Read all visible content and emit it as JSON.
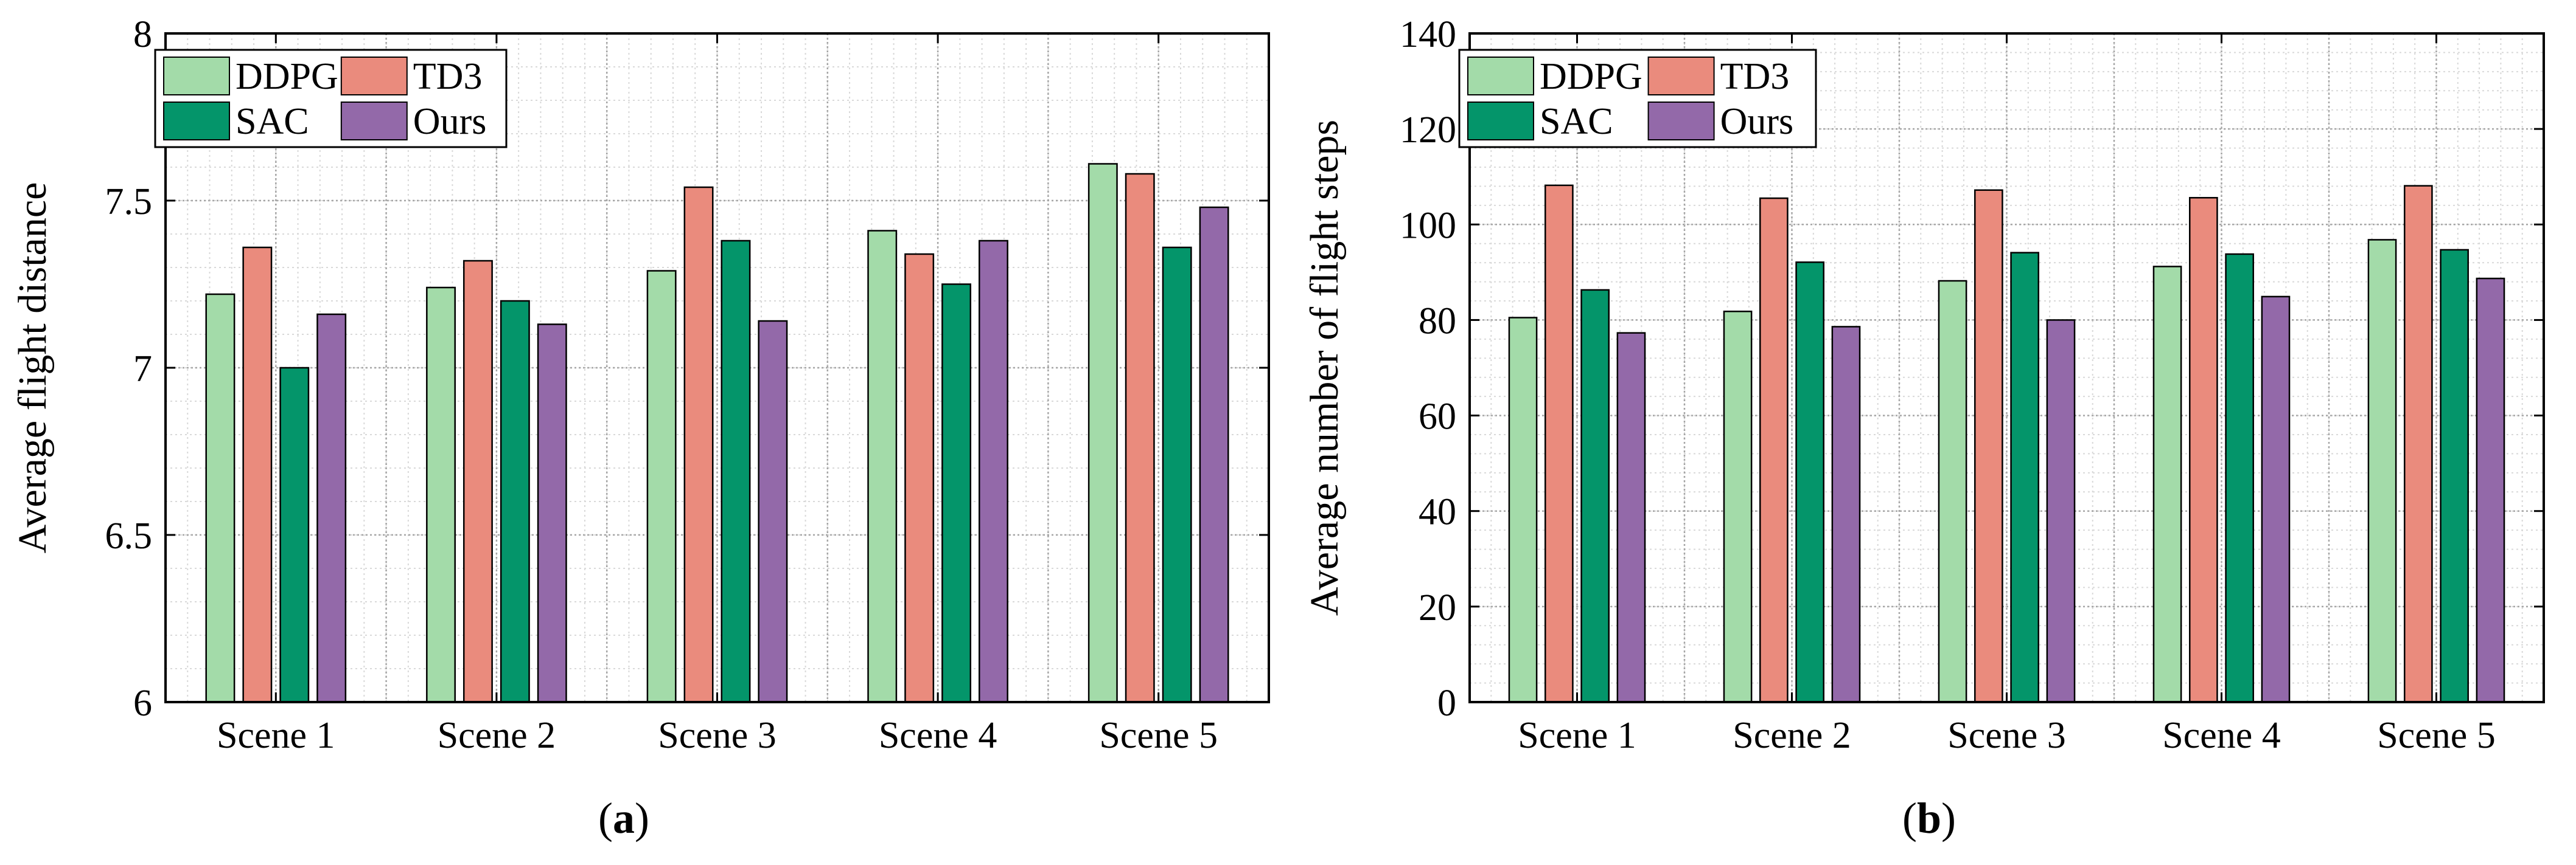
{
  "chart_data": [
    {
      "type": "bar",
      "panel_label": "a",
      "title": "",
      "xlabel": "",
      "ylabel": "Average flight distance",
      "categories": [
        "Scene 1",
        "Scene 2",
        "Scene 3",
        "Scene 4",
        "Scene 5"
      ],
      "ylim": [
        6,
        8
      ],
      "yticks": [
        6,
        6.5,
        7,
        7.5,
        8
      ],
      "ytick_labels": [
        "6",
        "6.5",
        "7",
        "7.5",
        "8"
      ],
      "grid": true,
      "legend_position": "top-left",
      "series": [
        {
          "name": "DDPG",
          "color": "#a3dba9",
          "values": [
            7.22,
            7.24,
            7.29,
            7.41,
            7.61
          ]
        },
        {
          "name": "TD3",
          "color": "#ea8b7d",
          "values": [
            7.36,
            7.32,
            7.54,
            7.34,
            7.58
          ]
        },
        {
          "name": "SAC",
          "color": "#04956a",
          "values": [
            7.0,
            7.2,
            7.38,
            7.25,
            7.36
          ]
        },
        {
          "name": "Ours",
          "color": "#9369a9",
          "values": [
            7.16,
            7.13,
            7.14,
            7.38,
            7.48
          ]
        }
      ]
    },
    {
      "type": "bar",
      "panel_label": "b",
      "title": "",
      "xlabel": "",
      "ylabel": "Average number of flight steps",
      "categories": [
        "Scene 1",
        "Scene 2",
        "Scene 3",
        "Scene 4",
        "Scene 5"
      ],
      "ylim": [
        0,
        140
      ],
      "yticks": [
        0,
        20,
        40,
        60,
        80,
        100,
        120,
        140
      ],
      "ytick_labels": [
        "0",
        "20",
        "40",
        "60",
        "80",
        "100",
        "120",
        "140"
      ],
      "grid": true,
      "legend_position": "top-left",
      "series": [
        {
          "name": "DDPG",
          "color": "#a3dba9",
          "values": [
            80.5,
            81.8,
            88.2,
            91.2,
            96.8
          ]
        },
        {
          "name": "TD3",
          "color": "#ea8b7d",
          "values": [
            108.2,
            105.5,
            107.2,
            105.6,
            108.1
          ]
        },
        {
          "name": "SAC",
          "color": "#04956a",
          "values": [
            86.3,
            92.1,
            94.1,
            93.8,
            94.7
          ]
        },
        {
          "name": "Ours",
          "color": "#9369a9",
          "values": [
            77.3,
            78.6,
            80.0,
            84.9,
            88.7
          ]
        }
      ]
    }
  ],
  "captions": [
    {
      "open": "(",
      "letter": "a",
      "close": ")"
    },
    {
      "open": "(",
      "letter": "b",
      "close": ")"
    }
  ]
}
